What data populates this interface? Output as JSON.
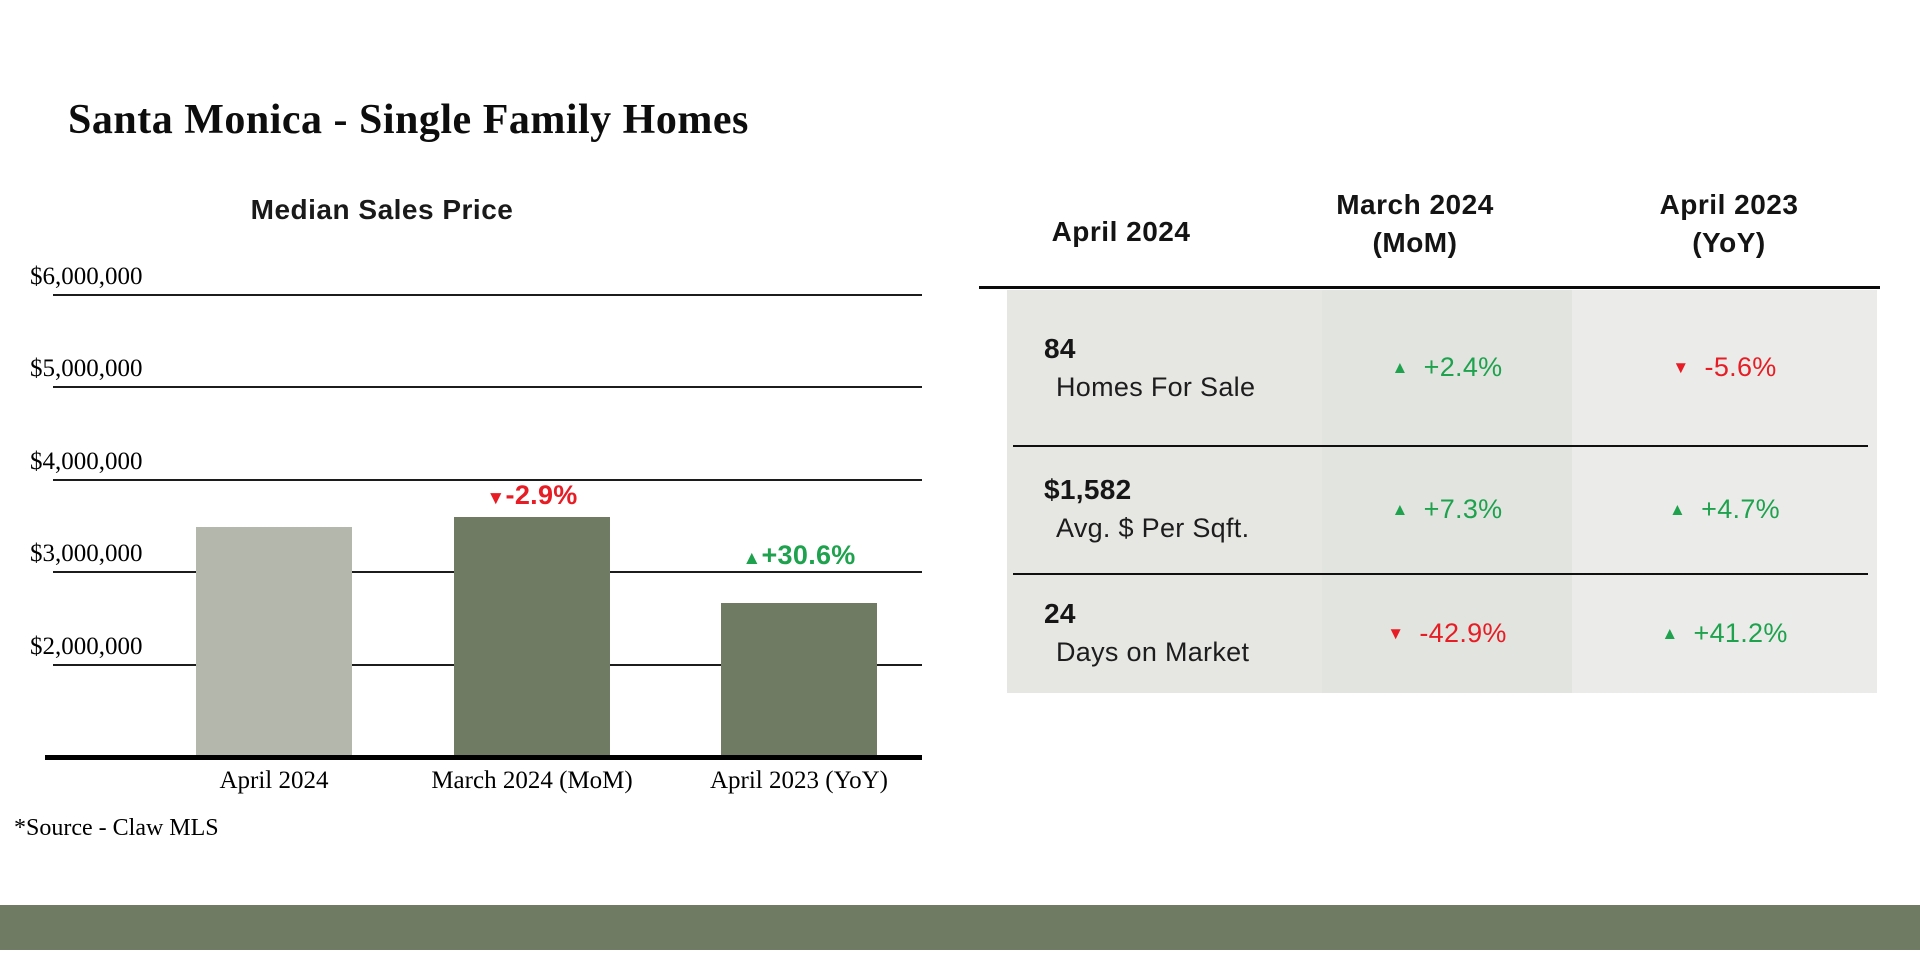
{
  "page": {
    "title": "Santa Monica - Single Family Homes",
    "source_note": "*Source - Claw MLS"
  },
  "colors": {
    "accent_green": "#1ea24d",
    "accent_red": "#e71c24",
    "olive_green": "#6f7c63",
    "sage_gray": "#b4b7ab",
    "table_col1_bg": "#e6e7e3",
    "table_col2_bg": "#e2e4e0",
    "table_col3_bg": "#ebece9"
  },
  "chart_data": {
    "type": "bar",
    "title": "Median Sales Price",
    "categories": [
      "April 2024",
      "March 2024 (MoM)",
      "April 2023 (YoY)"
    ],
    "values": [
      3490000,
      3590000,
      2670000
    ],
    "bars": [
      {
        "category": "April 2024",
        "value": 3490000,
        "color": "#b4b7ab",
        "label": null
      },
      {
        "category": "March 2024 (MoM)",
        "value": 3590000,
        "color": "#6f7c63",
        "label": {
          "symbol": "▼",
          "text": "-2.9%",
          "color": "#e71c24"
        }
      },
      {
        "category": "April 2023 (YoY)",
        "value": 2670000,
        "color": "#6f7c63",
        "label": {
          "symbol": "▲",
          "text": "+30.6%",
          "color": "#1ea24d"
        }
      }
    ],
    "y_ticks": [
      {
        "label": "$6,000,000",
        "value": 6000000
      },
      {
        "label": "$5,000,000",
        "value": 5000000
      },
      {
        "label": "$4,000,000",
        "value": 4000000
      },
      {
        "label": "$3,000,000",
        "value": 3000000
      },
      {
        "label": "$2,000,000",
        "value": 2000000
      }
    ],
    "ylim": [
      1000000,
      6250000
    ],
    "value_format": "USD",
    "grid": true,
    "legend": false
  },
  "table": {
    "columns": [
      {
        "label": "April 2024",
        "sublabel": ""
      },
      {
        "label": "March 2024",
        "sublabel": "(MoM)"
      },
      {
        "label": "April 2023",
        "sublabel": "(YoY)"
      }
    ],
    "rows": [
      {
        "value": "84",
        "label": "Homes For Sale",
        "mom": {
          "dir": "up",
          "symbol": "▲",
          "text": "+2.4%"
        },
        "yoy": {
          "dir": "down",
          "symbol": "▼",
          "text": "-5.6%"
        }
      },
      {
        "value": "$1,582",
        "label": "Avg. $ Per Sqft.",
        "mom": {
          "dir": "up",
          "symbol": "▲",
          "text": "+7.3%"
        },
        "yoy": {
          "dir": "up",
          "symbol": "▲",
          "text": "+4.7%"
        }
      },
      {
        "value": "24",
        "label": "Days on Market",
        "mom": {
          "dir": "down",
          "symbol": "▼",
          "text": "-42.9%"
        },
        "yoy": {
          "dir": "up",
          "symbol": "▲",
          "text": "+41.2%"
        }
      }
    ]
  }
}
